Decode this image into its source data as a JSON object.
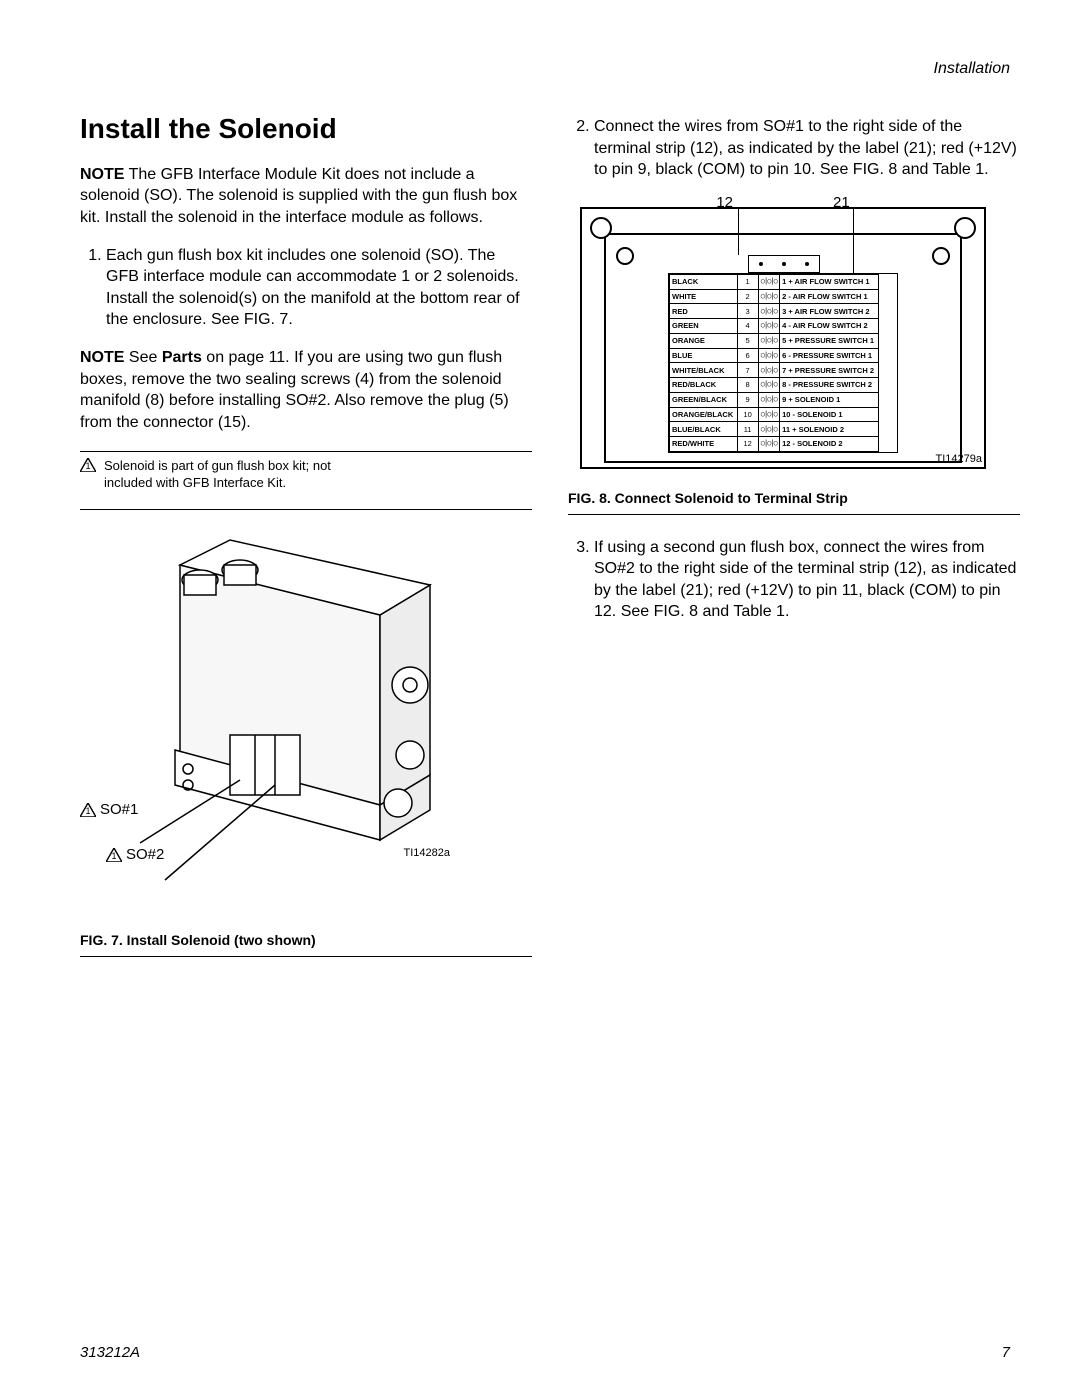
{
  "header": {
    "running_title": "Installation"
  },
  "footer": {
    "doc_number": "313212A",
    "page": "7"
  },
  "title": "Install the Solenoid",
  "intro_note_prefix": "NOTE",
  "intro_note": " The GFB Interface Module Kit does not include a solenoid (SO). The solenoid is supplied with the gun flush box kit. Install the solenoid in the interface module as follows.",
  "step1": "Each gun flush box kit includes one solenoid (SO). The GFB interface module can accommodate 1 or 2 solenoids. Install the solenoid(s) on the manifold at the bottom rear of the enclosure. See FIG. 7.",
  "note2_prefix": "NOTE",
  "note2_a": " See ",
  "note2_b": "Parts",
  "note2_c": " on page 11. If you are using two gun flush boxes, remove the two sealing screws (4) from the solenoid manifold (8) before installing SO#2. Also remove the plug (5) from the connector (15).",
  "caution_text": "Solenoid is part of gun flush box kit; not included with GFB Interface Kit.",
  "fig7": {
    "so1": "SO#1",
    "so2": "SO#2",
    "ref": "TI14282a",
    "caption_fig": "FIG. 7.",
    "caption_text": " Install Solenoid (two shown)"
  },
  "step2": "Connect the wires from SO#1 to the right side of the terminal strip (12), as indicated by the label (21); red (+12V) to pin 9, black (COM) to pin 10. See FIG. 8 and Table 1.",
  "step3": "If using a second gun flush box, connect the wires from SO#2 to the right side of the terminal strip (12), as indicated by the label (21); red (+12V) to pin 11, black (COM) to pin 12. See FIG. 8 and Table 1.",
  "fig8": {
    "callout_12": "12",
    "callout_21": "21",
    "ref": "TI14279a",
    "caption_fig": "FIG. 8.",
    "caption_text": " Connect Solenoid to Terminal Strip",
    "rows": [
      {
        "color": "BLACK",
        "n": "1",
        "sig": "1 + AIR FLOW SWITCH 1"
      },
      {
        "color": "WHITE",
        "n": "2",
        "sig": "2 - AIR FLOW SWITCH 1"
      },
      {
        "color": "RED",
        "n": "3",
        "sig": "3 + AIR FLOW SWITCH 2"
      },
      {
        "color": "GREEN",
        "n": "4",
        "sig": "4 - AIR FLOW SWITCH 2"
      },
      {
        "color": "ORANGE",
        "n": "5",
        "sig": "5 + PRESSURE SWITCH 1"
      },
      {
        "color": "BLUE",
        "n": "6",
        "sig": "6 - PRESSURE SWITCH 1"
      },
      {
        "color": "WHITE/BLACK",
        "n": "7",
        "sig": "7 + PRESSURE SWITCH 2"
      },
      {
        "color": "RED/BLACK",
        "n": "8",
        "sig": "8 - PRESSURE SWITCH 2"
      },
      {
        "color": "GREEN/BLACK",
        "n": "9",
        "sig": "9 + SOLENOID 1"
      },
      {
        "color": "ORANGE/BLACK",
        "n": "10",
        "sig": "10 - SOLENOID 1"
      },
      {
        "color": "BLUE/BLACK",
        "n": "11",
        "sig": "11 + SOLENOID 2"
      },
      {
        "color": "RED/WHITE",
        "n": "12",
        "sig": "12 - SOLENOID 2"
      }
    ]
  },
  "colors": {
    "line": "#000000",
    "bg": "#ffffff",
    "fill": "#f2f2f2"
  }
}
